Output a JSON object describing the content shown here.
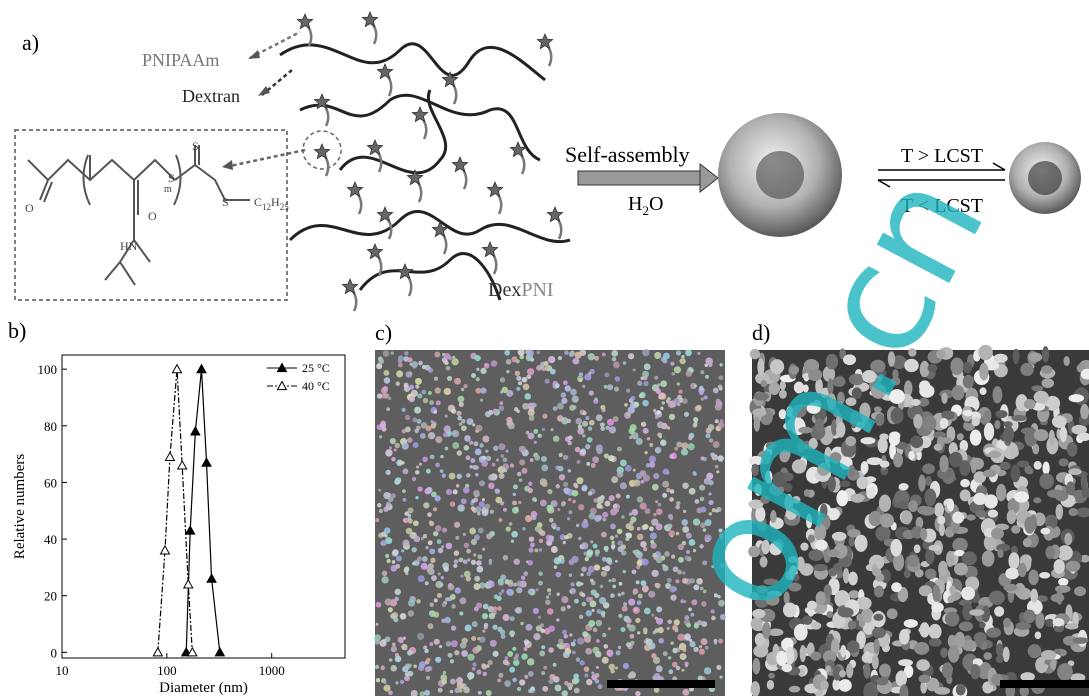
{
  "panel_a": {
    "label": "a)",
    "pnipaam": "PNIPAAm",
    "dextran": "Dextran",
    "self_assembly": "Self-assembly",
    "h2o": {
      "h": "H",
      "sub": "2",
      "o": "O"
    },
    "heat": "T > LCST",
    "cool": "T < LCST",
    "dex": "Dex",
    "pni": "PNI",
    "structure": {
      "s_top": "S",
      "s_mid": "S",
      "s_right": "S",
      "m": "m",
      "o_left": "O",
      "o_mid": "O",
      "c": "C",
      "c_sub": "12",
      "h": "H",
      "h_sub": "25",
      "hn": "HN"
    }
  },
  "panel_b": {
    "label": "b)"
  },
  "chart_data": {
    "type": "line",
    "xlabel": "Diameter (nm)",
    "ylabel": "Relative numbers",
    "xscale": "log",
    "xlim": [
      10,
      5000
    ],
    "ylim": [
      -2,
      105
    ],
    "xticks": [
      10,
      100,
      1000
    ],
    "yticks": [
      0,
      20,
      40,
      60,
      80,
      100
    ],
    "legend": "top-right",
    "series": [
      {
        "name": "25 °C",
        "color": "#000000",
        "marker": "filled",
        "x": [
          153,
          167,
          187,
          214,
          239,
          267,
          320
        ],
        "values": [
          0,
          43,
          78,
          100,
          67,
          26,
          0
        ]
      },
      {
        "name": "40 °C",
        "color": "#000000",
        "marker": "open",
        "x": [
          82,
          96,
          107,
          125,
          140,
          160,
          175
        ],
        "values": [
          0,
          36,
          69,
          100,
          66,
          24,
          0
        ]
      }
    ]
  },
  "panel_c": {
    "label": "c)"
  },
  "panel_d": {
    "label": "d)"
  },
  "watermark": "om.cn"
}
